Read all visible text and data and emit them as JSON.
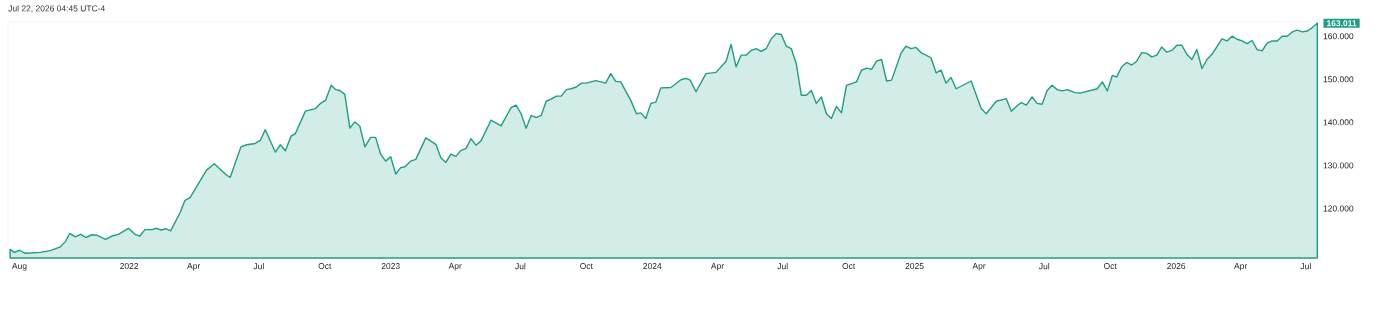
{
  "chart_data": {
    "type": "area",
    "title": "Jul 22, 2026 04:45 UTC-4",
    "color": "#1e9e85",
    "x": [
      "2021-07-19",
      "2021-07-25",
      "2021-08-01",
      "2021-08-09",
      "2021-08-30",
      "2021-09-13",
      "2021-09-27",
      "2021-10-04",
      "2021-10-10",
      "2021-10-18",
      "2021-10-25",
      "2021-11-02",
      "2021-11-10",
      "2021-11-17",
      "2021-11-29",
      "2021-12-08",
      "2021-12-17",
      "2021-12-31",
      "2022-01-09",
      "2022-01-16",
      "2022-01-23",
      "2022-02-02",
      "2022-02-08",
      "2022-02-15",
      "2022-02-21",
      "2022-02-28",
      "2022-03-13",
      "2022-03-20",
      "2022-03-27",
      "2022-04-19",
      "2022-04-30",
      "2022-05-15",
      "2022-05-22",
      "2022-06-06",
      "2022-06-14",
      "2022-06-26",
      "2022-07-03",
      "2022-07-10",
      "2022-07-24",
      "2022-07-31",
      "2022-08-07",
      "2022-08-15",
      "2022-08-21",
      "2022-09-04",
      "2022-09-18",
      "2022-09-25",
      "2022-10-02",
      "2022-10-10",
      "2022-10-16",
      "2022-10-22",
      "2022-10-29",
      "2022-11-05",
      "2022-11-12",
      "2022-11-19",
      "2022-11-26",
      "2022-12-04",
      "2022-12-11",
      "2022-12-18",
      "2022-12-25",
      "2023-01-01",
      "2023-01-08",
      "2023-01-15",
      "2023-01-21",
      "2023-01-29",
      "2023-02-05",
      "2023-02-19",
      "2023-03-05",
      "2023-03-12",
      "2023-03-19",
      "2023-03-26",
      "2023-04-02",
      "2023-04-09",
      "2023-04-16",
      "2023-04-23",
      "2023-04-30",
      "2023-05-07",
      "2023-05-21",
      "2023-06-04",
      "2023-06-18",
      "2023-06-25",
      "2023-07-02",
      "2023-07-09",
      "2023-07-16",
      "2023-07-23",
      "2023-07-30",
      "2023-08-06",
      "2023-08-13",
      "2023-08-20",
      "2023-08-27",
      "2023-09-03",
      "2023-09-10",
      "2023-09-17",
      "2023-09-24",
      "2023-10-01",
      "2023-10-14",
      "2023-10-28",
      "2023-11-04",
      "2023-11-11",
      "2023-11-18",
      "2023-12-02",
      "2023-12-10",
      "2023-12-16",
      "2023-12-23",
      "2023-12-30",
      "2024-01-06",
      "2024-01-13",
      "2024-01-27",
      "2024-02-10",
      "2024-02-17",
      "2024-02-23",
      "2024-03-02",
      "2024-03-16",
      "2024-03-30",
      "2024-04-13",
      "2024-04-20",
      "2024-04-27",
      "2024-05-04",
      "2024-05-11",
      "2024-05-18",
      "2024-05-25",
      "2024-06-01",
      "2024-06-08",
      "2024-06-15",
      "2024-06-22",
      "2024-06-29",
      "2024-07-06",
      "2024-07-13",
      "2024-07-20",
      "2024-07-27",
      "2024-08-03",
      "2024-08-10",
      "2024-08-17",
      "2024-08-24",
      "2024-08-31",
      "2024-09-07",
      "2024-09-14",
      "2024-09-21",
      "2024-09-28",
      "2024-10-12",
      "2024-10-19",
      "2024-10-26",
      "2024-11-02",
      "2024-11-09",
      "2024-11-16",
      "2024-11-23",
      "2024-11-30",
      "2024-12-13",
      "2024-12-20",
      "2024-12-27",
      "2025-01-03",
      "2025-01-10",
      "2025-01-24",
      "2025-01-31",
      "2025-02-07",
      "2025-02-14",
      "2025-02-21",
      "2025-02-28",
      "2025-03-21",
      "2025-04-04",
      "2025-04-11",
      "2025-04-25",
      "2025-05-09",
      "2025-05-16",
      "2025-05-23",
      "2025-05-30",
      "2025-06-06",
      "2025-06-14",
      "2025-06-21",
      "2025-06-28",
      "2025-07-05",
      "2025-07-12",
      "2025-07-19",
      "2025-07-26",
      "2025-08-02",
      "2025-08-13",
      "2025-08-20",
      "2025-09-13",
      "2025-09-20",
      "2025-09-27",
      "2025-10-04",
      "2025-10-10",
      "2025-10-17",
      "2025-10-24",
      "2025-10-31",
      "2025-11-07",
      "2025-11-14",
      "2025-11-21",
      "2025-11-28",
      "2025-12-05",
      "2025-12-12",
      "2025-12-19",
      "2025-12-26",
      "2026-01-02",
      "2026-01-09",
      "2026-01-16",
      "2026-01-23",
      "2026-01-30",
      "2026-02-06",
      "2026-02-13",
      "2026-02-20",
      "2026-03-06",
      "2026-03-13",
      "2026-03-20",
      "2026-03-27",
      "2026-04-03",
      "2026-04-10",
      "2026-04-17",
      "2026-04-24",
      "2026-05-01",
      "2026-05-08",
      "2026-05-15",
      "2026-05-22",
      "2026-05-29",
      "2026-06-05",
      "2026-06-12",
      "2026-06-19",
      "2026-06-26",
      "2026-07-03",
      "2026-07-10",
      "2026-07-17"
    ],
    "values": [
      110.5,
      109.8,
      110.3,
      109.6,
      109.8,
      110.2,
      111.1,
      112.3,
      114.2,
      113.4,
      114.0,
      113.3,
      113.9,
      113.8,
      112.8,
      113.6,
      114.0,
      115.4,
      114.0,
      113.6,
      115.1,
      115.1,
      115.4,
      115.0,
      115.3,
      114.8,
      119.0,
      121.9,
      122.5,
      128.9,
      130.4,
      128.0,
      127.2,
      134.3,
      134.8,
      135.1,
      135.8,
      138.3,
      133.1,
      134.8,
      133.4,
      136.8,
      137.4,
      142.6,
      143.2,
      144.4,
      145.1,
      148.6,
      147.6,
      147.4,
      146.5,
      138.7,
      140.1,
      139.1,
      134.3,
      136.5,
      136.5,
      132.6,
      131.0,
      132.0,
      128.0,
      129.5,
      129.7,
      131.0,
      131.4,
      136.4,
      134.9,
      131.8,
      130.7,
      132.6,
      132.1,
      133.5,
      133.9,
      136.2,
      134.7,
      135.7,
      140.5,
      139.2,
      143.4,
      144.0,
      142.0,
      138.6,
      141.6,
      141.1,
      141.6,
      144.9,
      145.4,
      146.1,
      146.1,
      147.6,
      147.8,
      148.2,
      149.1,
      149.1,
      149.7,
      149.1,
      151.3,
      149.5,
      149.4,
      145.1,
      142.0,
      142.2,
      140.9,
      144.4,
      144.7,
      148.0,
      148.1,
      149.9,
      150.2,
      149.8,
      147.1,
      151.3,
      151.6,
      154.2,
      158.1,
      152.9,
      155.6,
      155.6,
      156.7,
      157.1,
      156.5,
      157.1,
      159.4,
      160.6,
      160.4,
      157.7,
      157.1,
      153.6,
      146.3,
      146.3,
      147.4,
      144.4,
      145.9,
      142.0,
      140.9,
      143.7,
      142.2,
      148.6,
      149.4,
      152.1,
      152.6,
      152.3,
      154.2,
      154.6,
      149.6,
      149.8,
      156.0,
      157.7,
      157.1,
      157.4,
      156.2,
      155.0,
      151.5,
      152.1,
      149.1,
      150.4,
      147.8,
      149.6,
      143.2,
      142.0,
      144.9,
      145.5,
      142.6,
      143.7,
      144.6,
      144.0,
      145.9,
      144.4,
      144.2,
      147.4,
      148.6,
      147.6,
      147.3,
      147.6,
      146.9,
      146.8,
      147.8,
      149.4,
      147.3,
      150.9,
      150.5,
      152.9,
      153.9,
      153.3,
      154.2,
      156.2,
      156.0,
      155.2,
      155.6,
      157.5,
      156.3,
      156.7,
      157.9,
      157.9,
      155.8,
      154.6,
      156.9,
      152.5,
      154.6,
      155.8,
      159.4,
      158.9,
      160.0,
      159.3,
      158.9,
      158.3,
      159.0,
      156.9,
      156.6,
      158.4,
      158.9,
      158.9,
      160.0,
      160.0,
      161.0,
      161.4,
      161.0,
      161.2,
      162.0,
      163.011
    ],
    "xlim": [
      "2021-07-16",
      "2026-07-18"
    ],
    "ylim": [
      108.5,
      163.3
    ],
    "xticks": [
      {
        "value": "2021-08-01",
        "label": "Aug"
      },
      {
        "value": "2022-01-01",
        "label": "2022"
      },
      {
        "value": "2022-04-01",
        "label": "Apr"
      },
      {
        "value": "2022-07-01",
        "label": "Jul"
      },
      {
        "value": "2022-10-01",
        "label": "Oct"
      },
      {
        "value": "2023-01-01",
        "label": "2023"
      },
      {
        "value": "2023-04-01",
        "label": "Apr"
      },
      {
        "value": "2023-07-01",
        "label": "Jul"
      },
      {
        "value": "2023-10-01",
        "label": "Oct"
      },
      {
        "value": "2024-01-01",
        "label": "2024"
      },
      {
        "value": "2024-04-01",
        "label": "Apr"
      },
      {
        "value": "2024-07-01",
        "label": "Jul"
      },
      {
        "value": "2024-10-01",
        "label": "Oct"
      },
      {
        "value": "2025-01-01",
        "label": "2025"
      },
      {
        "value": "2025-04-01",
        "label": "Apr"
      },
      {
        "value": "2025-07-01",
        "label": "Jul"
      },
      {
        "value": "2025-10-01",
        "label": "Oct"
      },
      {
        "value": "2026-01-01",
        "label": "2026"
      },
      {
        "value": "2026-04-01",
        "label": "Apr"
      },
      {
        "value": "2026-07-01",
        "label": "Jul"
      }
    ],
    "yticks": [
      {
        "value": 120,
        "label": "120.000"
      },
      {
        "value": 130,
        "label": "130.000"
      },
      {
        "value": 140,
        "label": "140.000"
      },
      {
        "value": 150,
        "label": "150.000"
      },
      {
        "value": 160,
        "label": "160.000"
      }
    ],
    "annotations": [
      {
        "text": "163.011",
        "x": "2026-07-17",
        "y": 163.011
      }
    ]
  }
}
